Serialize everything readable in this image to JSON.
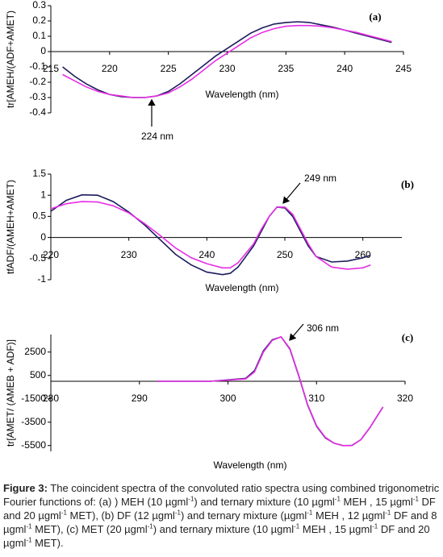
{
  "chart_data": [
    {
      "type": "line",
      "x_label": "Wavelength (nm)",
      "y_label": "tr[AMEH/(ADF+AMET)",
      "annotations": [
        "(a)",
        "224 nm"
      ],
      "x": [
        216,
        217,
        218,
        219,
        220,
        221,
        222,
        223,
        224,
        225,
        226,
        227,
        228,
        229,
        230,
        231,
        232,
        233,
        234,
        235,
        236,
        237,
        238,
        239,
        240,
        241,
        242,
        243,
        244
      ],
      "series": [
        {
          "color": "#1c1c5c",
          "values": [
            -0.1,
            -0.16,
            -0.21,
            -0.25,
            -0.28,
            -0.295,
            -0.3,
            -0.3,
            -0.29,
            -0.26,
            -0.21,
            -0.15,
            -0.09,
            -0.03,
            0.02,
            0.07,
            0.12,
            0.155,
            0.18,
            0.19,
            0.195,
            0.19,
            0.175,
            0.16,
            0.14,
            0.12,
            0.1,
            0.08,
            0.06
          ]
        },
        {
          "color": "#e62ee6",
          "values": [
            -0.15,
            -0.19,
            -0.23,
            -0.26,
            -0.28,
            -0.29,
            -0.3,
            -0.3,
            -0.29,
            -0.27,
            -0.23,
            -0.18,
            -0.12,
            -0.06,
            -0.01,
            0.04,
            0.09,
            0.125,
            0.15,
            0.165,
            0.17,
            0.17,
            0.165,
            0.155,
            0.14,
            0.125,
            0.105,
            0.085,
            0.065
          ]
        }
      ],
      "xlim": [
        215,
        245
      ],
      "xticks": [
        215,
        220,
        225,
        230,
        235,
        240,
        245
      ],
      "ylim": [
        -0.4,
        0.3
      ],
      "yticks": [
        -0.4,
        -0.3,
        -0.2,
        -0.1,
        0,
        0.1,
        0.2,
        0.3
      ]
    },
    {
      "type": "line",
      "x_label": "Wavelength (nm)",
      "y_label": "tfADF/(AMEH+AMET)",
      "annotations": [
        "(b)",
        "249 nm"
      ],
      "x": [
        220,
        222,
        224,
        226,
        228,
        230,
        232,
        234,
        236,
        238,
        240,
        242,
        243,
        244,
        246,
        247,
        248,
        249,
        250,
        251,
        252,
        253,
        254,
        256,
        258,
        260,
        261
      ],
      "series": [
        {
          "color": "#1c1c5c",
          "values": [
            0.62,
            0.88,
            1.01,
            1.0,
            0.85,
            0.6,
            0.3,
            -0.05,
            -0.4,
            -0.65,
            -0.82,
            -0.88,
            -0.85,
            -0.7,
            -0.2,
            0.15,
            0.5,
            0.72,
            0.7,
            0.5,
            0.15,
            -0.2,
            -0.45,
            -0.58,
            -0.56,
            -0.48,
            -0.42
          ]
        },
        {
          "color": "#e62ee6",
          "values": [
            0.68,
            0.8,
            0.85,
            0.84,
            0.75,
            0.58,
            0.33,
            0.05,
            -0.25,
            -0.48,
            -0.62,
            -0.72,
            -0.72,
            -0.6,
            -0.15,
            0.2,
            0.5,
            0.72,
            0.72,
            0.55,
            0.2,
            -0.15,
            -0.45,
            -0.7,
            -0.75,
            -0.72,
            -0.65
          ]
        }
      ],
      "xlim": [
        220,
        265
      ],
      "xticks": [
        220,
        230,
        240,
        250,
        260
      ],
      "ylim": [
        -1,
        1.5
      ],
      "yticks": [
        -1,
        -0.5,
        0,
        0.5,
        1,
        1.5
      ]
    },
    {
      "type": "line",
      "x_label": "Wavelength (nm)",
      "y_label": "tr[AMET/ (AMEB + ADF)]",
      "annotations": [
        "(c)",
        "306 nm"
      ],
      "x": [
        292,
        298,
        302,
        303,
        304,
        305,
        306,
        307,
        308,
        309,
        310,
        311,
        312,
        313,
        314,
        315,
        316,
        317,
        317.5
      ],
      "series": [
        {
          "color": "#1c1c5c",
          "values": [
            0,
            0,
            250,
            900,
            2600,
            3550,
            3800,
            2750,
            450,
            -2050,
            -3850,
            -4850,
            -5300,
            -5500,
            -5480,
            -5000,
            -4000,
            -2800,
            -2200
          ]
        },
        {
          "color": "#e62ee6",
          "values": [
            0,
            0,
            200,
            800,
            2500,
            3500,
            3800,
            2800,
            500,
            -2000,
            -3800,
            -4800,
            -5300,
            -5500,
            -5500,
            -5000,
            -4000,
            -2800,
            -2200
          ]
        }
      ],
      "xlim": [
        280,
        320
      ],
      "xticks": [
        280,
        290,
        300,
        310,
        320
      ],
      "ylim": [
        -6000,
        4000
      ],
      "yticks": [
        -5500,
        -3500,
        -1500,
        500,
        2500
      ]
    }
  ],
  "caption": {
    "label": "Figure 3:",
    "parts": [
      " The coincident spectra of the convoluted ratio spectra using combined trigonometric Fourier functions of: (a) ) MEH (10 µgml",
      "-1",
      ") and ternary mixture (10 µgml",
      "-1",
      "  MEH , 15 µgml",
      "-1",
      " DF and 20 µgml",
      "-1",
      "  MET), (b) DF (12 µgml",
      "-1",
      ") and ternary mixture (µgml",
      "-1",
      "  MEH , 12 µgml",
      "-1",
      " DF and 8 µgml",
      "-1",
      " MET), (c) MET (20 µgml",
      "-1",
      ") and ternary mixture (10 µgml",
      "-1",
      " MEH , 15 µgml",
      "-1",
      " DF and 20 µgml",
      "-1",
      " MET)."
    ]
  }
}
